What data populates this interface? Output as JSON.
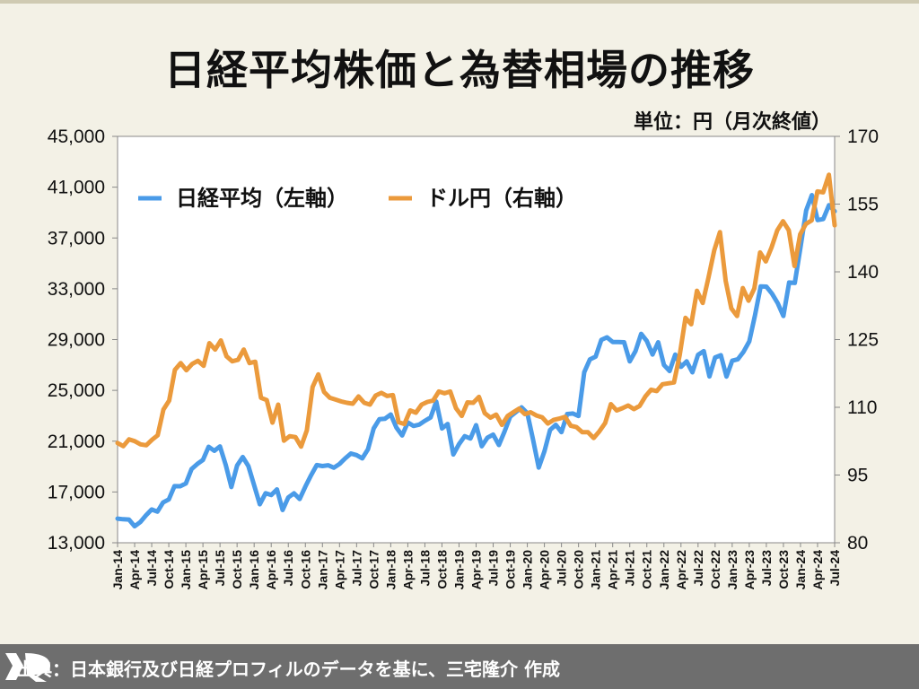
{
  "title": "日経平均株価と為替相場の推移",
  "unit_note": "単位：円（月次終値）",
  "footer": "出典：日本銀行及び日経プロフィルのデータを基に、三宅隆介 作成",
  "chart_data": {
    "type": "line",
    "title": "日経平均株価と為替相場の推移",
    "x_ticks": [
      "Jan-14",
      "Apr-14",
      "Jul-14",
      "Oct-14",
      "Jan-15",
      "Apr-15",
      "Jul-15",
      "Oct-15",
      "Jan-16",
      "Apr-16",
      "Jul-16",
      "Oct-16",
      "Jan-17",
      "Apr-17",
      "Jul-17",
      "Oct-17",
      "Jan-18",
      "Apr-18",
      "Jul-18",
      "Oct-18",
      "Jan-19",
      "Apr-19",
      "Jul-19",
      "Oct-19",
      "Jan-20",
      "Apr-20",
      "Jul-20",
      "Oct-20",
      "Jan-21",
      "Apr-21",
      "Jul-21",
      "Oct-21",
      "Jan-22",
      "Apr-22",
      "Jul-22",
      "Oct-22",
      "Jan-23",
      "Apr-23",
      "Jul-23",
      "Oct-23",
      "Jan-24",
      "Apr-24",
      "Jul-24"
    ],
    "y_left": {
      "ylim": [
        13000,
        45000
      ],
      "ticks": [
        "13,000",
        "17,000",
        "21,000",
        "25,000",
        "29,000",
        "33,000",
        "37,000",
        "41,000",
        "45,000"
      ]
    },
    "y_right": {
      "ylim": [
        80,
        170
      ],
      "ticks": [
        "80",
        "95",
        "110",
        "125",
        "140",
        "155",
        "170"
      ]
    },
    "legend_placement": "top-left",
    "series": [
      {
        "name": "日経平均（左軸）",
        "axis": "left",
        "color": "#4a9be8",
        "values": [
          14900,
          14850,
          14830,
          14300,
          14630,
          15160,
          15620,
          15450,
          16170,
          16410,
          17460,
          17450,
          17670,
          18800,
          19200,
          19520,
          20560,
          20240,
          20590,
          19140,
          17390,
          19080,
          19750,
          19030,
          17520,
          16030,
          16900,
          16760,
          17200,
          15580,
          16570,
          16890,
          16450,
          17430,
          18310,
          19120,
          19040,
          19100,
          18910,
          19200,
          19650,
          20030,
          19900,
          19650,
          20360,
          22010,
          22730,
          22770,
          23100,
          22070,
          21450,
          22470,
          22200,
          22300,
          22600,
          22870,
          24120,
          22000,
          22350,
          19950,
          20770,
          21390,
          21210,
          22260,
          20600,
          21280,
          21520,
          20700,
          21760,
          22930,
          23290,
          23660,
          23200,
          21140,
          18920,
          20190,
          21880,
          22290,
          21710,
          23140,
          23180,
          22980,
          26430,
          27440,
          27660,
          28970,
          29180,
          28810,
          28810,
          28790,
          27280,
          28090,
          29450,
          28890,
          27820,
          28790,
          27000,
          26520,
          27820,
          26850,
          27280,
          26420,
          27800,
          28090,
          26100,
          27590,
          27770,
          26090,
          27330,
          27450,
          28040,
          28860,
          30890,
          33190,
          33170,
          32620,
          31860,
          30860,
          33490,
          33460,
          36290,
          39170,
          40370,
          38410,
          38490,
          39580,
          39100
        ]
      },
      {
        "name": "ドル円（右軸）",
        "axis": "right",
        "color": "#eb9a3c",
        "values": [
          102.1,
          101.4,
          102.9,
          102.5,
          101.8,
          101.6,
          102.8,
          103.8,
          109.5,
          111.5,
          118.3,
          119.8,
          118.2,
          119.6,
          120.3,
          119.2,
          124.2,
          122.8,
          124.8,
          121.3,
          120.2,
          120.5,
          122.8,
          119.8,
          120.1,
          112.1,
          111.6,
          106.6,
          110.6,
          102.6,
          103.6,
          103.4,
          101.3,
          104.9,
          114.5,
          117.3,
          113.4,
          112.1,
          111.7,
          111.3,
          111.0,
          110.8,
          112.4,
          111.0,
          110.6,
          112.6,
          113.2,
          112.5,
          112.7,
          106.7,
          106.3,
          109.3,
          108.8,
          110.6,
          111.2,
          111.5,
          113.5,
          113.1,
          113.5,
          109.8,
          108.1,
          111.1,
          111.0,
          112.3,
          108.7,
          107.7,
          108.4,
          106.1,
          108.1,
          108.9,
          109.7,
          108.5,
          108.9,
          108.2,
          107.8,
          106.4,
          107.2,
          107.5,
          107.9,
          105.9,
          105.6,
          104.5,
          104.5,
          103.2,
          104.7,
          106.5,
          110.7,
          109.3,
          109.8,
          110.4,
          109.6,
          110.3,
          112.4,
          113.9,
          113.6,
          115.1,
          115.3,
          115.5,
          121.6,
          129.8,
          128.4,
          135.8,
          133.1,
          138.7,
          144.7,
          148.8,
          138.0,
          131.9,
          130.2,
          136.4,
          133.6,
          136.3,
          144.3,
          142.3,
          145.4,
          149.2,
          151.2,
          149.2,
          141.3,
          148.3,
          150.6,
          151.4,
          157.8,
          157.6,
          161.5,
          150.3
        ]
      }
    ]
  }
}
